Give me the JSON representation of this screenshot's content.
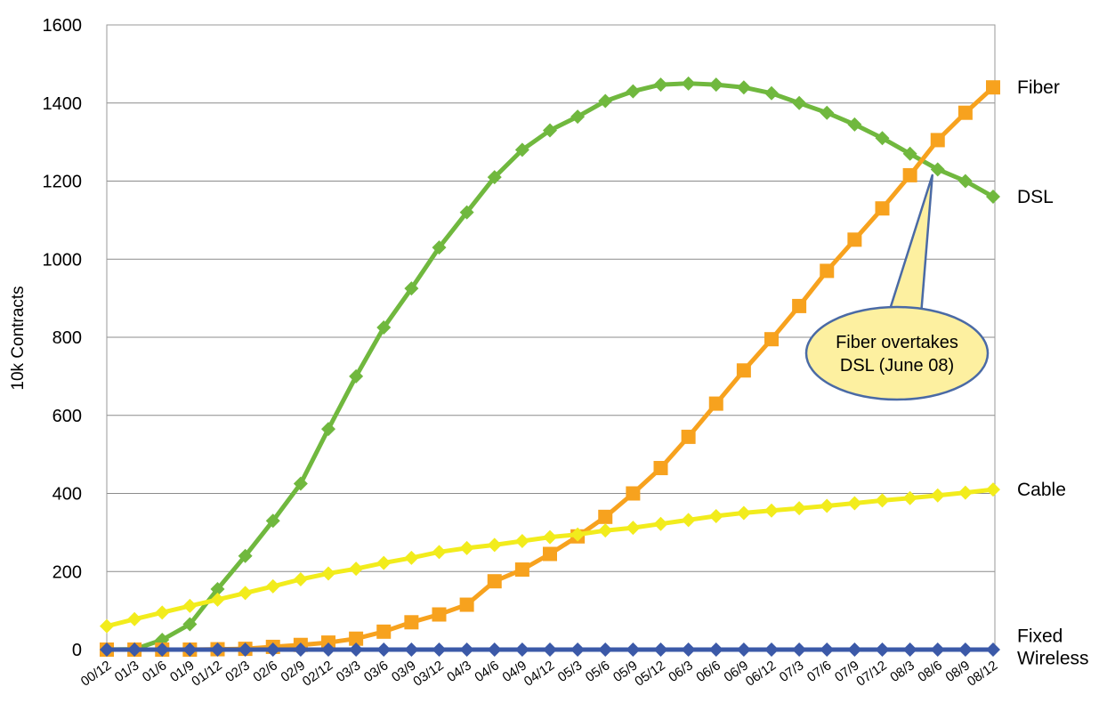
{
  "chart_data": {
    "type": "line",
    "title": "",
    "xlabel": "",
    "ylabel": "10k Contracts",
    "ylim": [
      0,
      1600
    ],
    "yticks": [
      0,
      200,
      400,
      600,
      800,
      1000,
      1200,
      1400,
      1600
    ],
    "grid": "horizontal",
    "categories": [
      "00/12",
      "01/3",
      "01/6",
      "01/9",
      "01/12",
      "02/3",
      "02/6",
      "02/9",
      "02/12",
      "03/3",
      "03/6",
      "03/9",
      "03/12",
      "04/3",
      "04/6",
      "04/9",
      "04/12",
      "05/3",
      "05/6",
      "05/9",
      "05/12",
      "06/3",
      "06/6",
      "06/9",
      "06/12",
      "07/3",
      "07/6",
      "07/9",
      "07/12",
      "08/3",
      "08/6",
      "08/9",
      "08/12"
    ],
    "series": [
      {
        "name": "DSL",
        "color": "#70b83e",
        "marker": "diamond",
        "values": [
          0,
          1,
          25,
          65,
          155,
          240,
          330,
          425,
          565,
          700,
          825,
          925,
          1030,
          1120,
          1210,
          1280,
          1330,
          1365,
          1405,
          1430,
          1447,
          1450,
          1447,
          1440,
          1425,
          1400,
          1375,
          1345,
          1310,
          1270,
          1230,
          1200,
          1160
        ]
      },
      {
        "name": "Fiber",
        "color": "#f7a21e",
        "marker": "square",
        "values": [
          0,
          0,
          0,
          0,
          1,
          2,
          7,
          12,
          18,
          28,
          46,
          70,
          90,
          115,
          175,
          205,
          245,
          290,
          340,
          400,
          465,
          545,
          630,
          715,
          795,
          880,
          970,
          1050,
          1130,
          1215,
          1305,
          1375,
          1440
        ]
      },
      {
        "name": "Cable",
        "color": "#f2ec1c",
        "marker": "diamond",
        "values": [
          60,
          78,
          95,
          112,
          128,
          145,
          162,
          180,
          195,
          207,
          222,
          235,
          250,
          260,
          268,
          278,
          288,
          295,
          305,
          312,
          322,
          332,
          342,
          350,
          356,
          362,
          368,
          375,
          382,
          388,
          395,
          402,
          410
        ]
      },
      {
        "name": "Fixed Wireless",
        "color": "#3b59a8",
        "marker": "diamond",
        "values": [
          0,
          0,
          0,
          0,
          0,
          0,
          0,
          0,
          0,
          0,
          0,
          0,
          0,
          0,
          0,
          0,
          0,
          0,
          0,
          0,
          0,
          0,
          0,
          0,
          0,
          0,
          0,
          0,
          0,
          0,
          0,
          0,
          0
        ]
      }
    ],
    "series_labels": [
      {
        "key": "Fiber",
        "lines": [
          "Fiber"
        ]
      },
      {
        "key": "DSL",
        "lines": [
          "DSL"
        ]
      },
      {
        "key": "Cable",
        "lines": [
          "Cable"
        ]
      },
      {
        "key": "Fixed Wireless",
        "lines": [
          "Fixed",
          "Wireless"
        ]
      }
    ],
    "annotation": {
      "lines": [
        "Fiber overtakes",
        "DSL (June 08)"
      ],
      "target_category": "08/6",
      "fill": "#fdf0a0",
      "stroke": "#4a6aa5"
    }
  }
}
